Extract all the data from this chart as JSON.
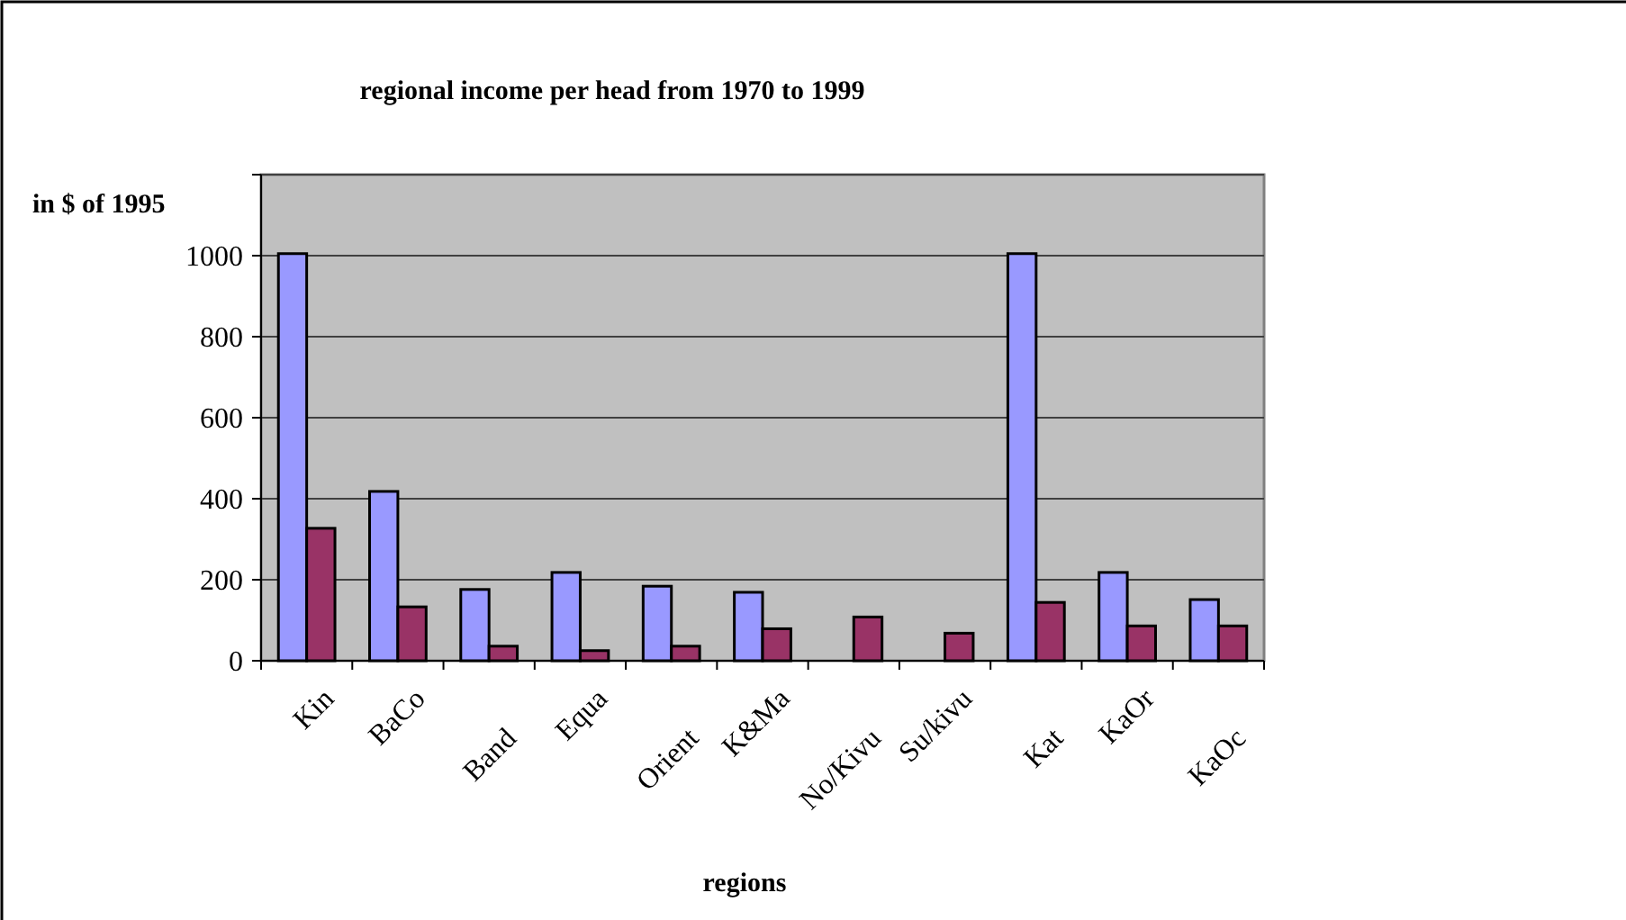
{
  "chart_data": {
    "type": "bar",
    "title": "regional income per head from 1970 to 1999",
    "xlabel": "regions",
    "ylabel": "in $ of 1995",
    "categories": [
      "Kin",
      "BaCo",
      "Band",
      "Equa",
      "Orient",
      "K&Ma",
      "No/Kivu",
      "Su/kivu",
      "Kat",
      "KaOr",
      "KaOc"
    ],
    "series": [
      {
        "color": "#9999ff",
        "values": [
          1005,
          418,
          176,
          218,
          184,
          169,
          null,
          null,
          1005,
          218,
          151
        ]
      },
      {
        "color": "#993366",
        "values": [
          327,
          133,
          36,
          25,
          36,
          79,
          108,
          68,
          144,
          86,
          86
        ]
      }
    ],
    "ylim": [
      0,
      1200
    ],
    "yticks": [
      0,
      200,
      400,
      600,
      800,
      1000,
      {
        "value": 1200,
        "label": null
      }
    ],
    "grid": "y"
  }
}
